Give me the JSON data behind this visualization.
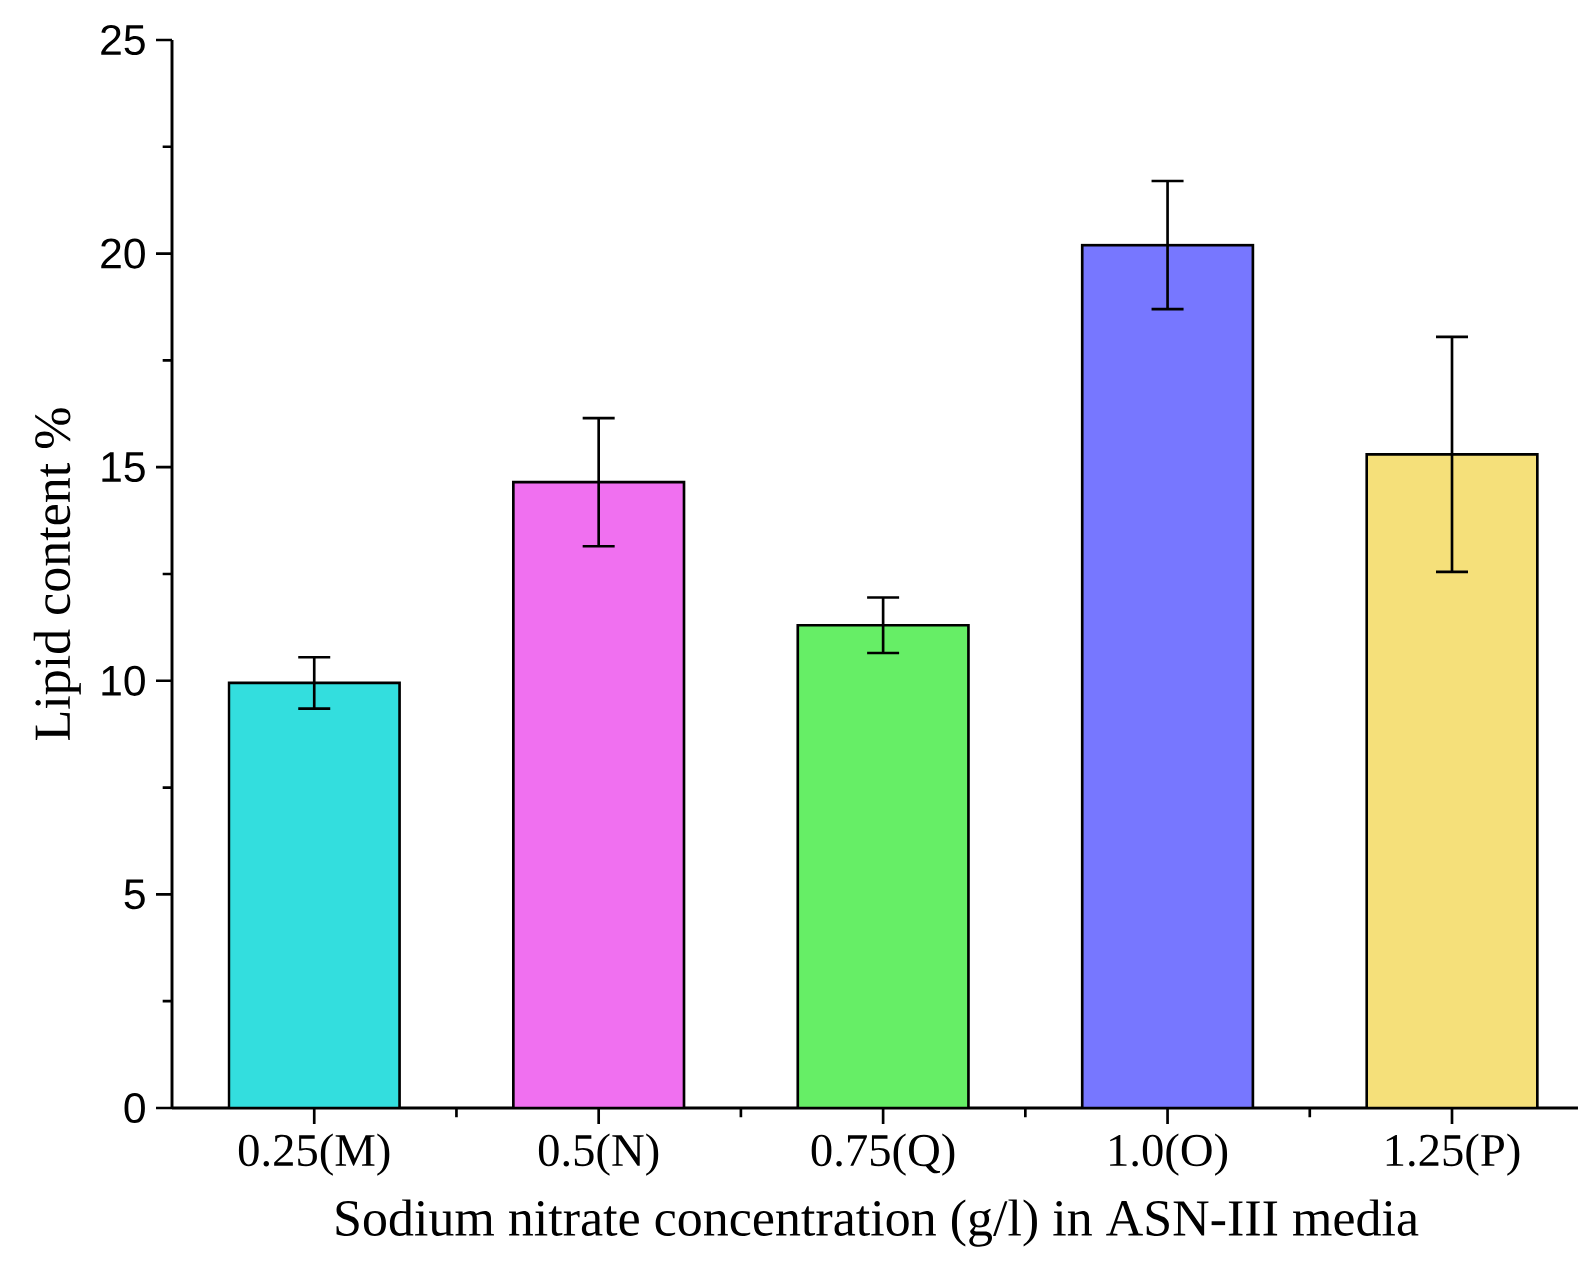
{
  "chart_data": {
    "type": "bar",
    "xlabel": "Sodium nitrate concentration (g/l) in ASN-III media",
    "ylabel": "Lipid content %",
    "categories": [
      "0.25(M)",
      "0.5(N)",
      "0.75(Q)",
      "1.0(O)",
      "1.25(P)"
    ],
    "values": [
      9.95,
      14.65,
      11.3,
      20.2,
      15.3
    ],
    "errors": [
      0.6,
      1.5,
      0.65,
      1.5,
      2.75
    ],
    "colors": [
      "#33dede",
      "#f070f0",
      "#66ee66",
      "#7777ff",
      "#f5e07a"
    ],
    "ylim": [
      0,
      25
    ],
    "yticks": [
      0,
      5,
      10,
      15,
      20,
      25
    ],
    "grid": false
  }
}
